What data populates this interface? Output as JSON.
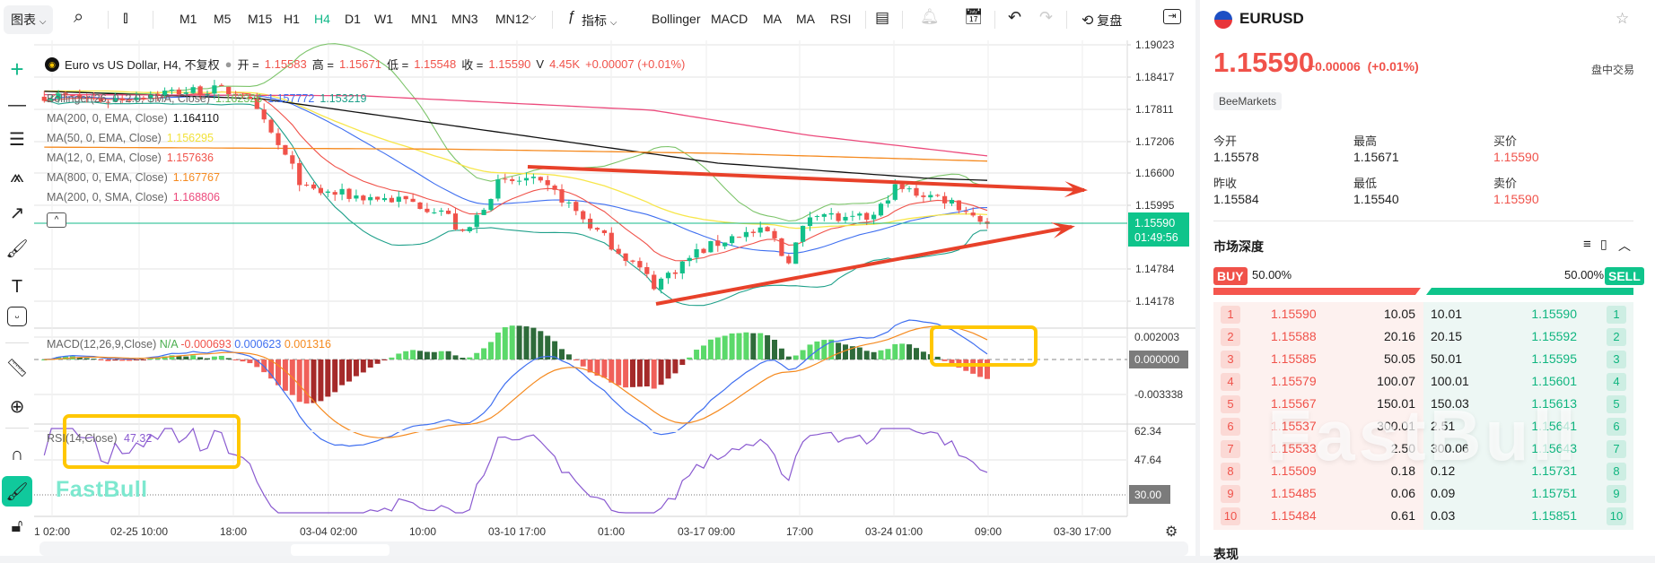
{
  "toolbar": {
    "chart_menu": "图表",
    "timeframes": [
      "M1",
      "M5",
      "M15",
      "H1",
      "H4",
      "D1",
      "W1",
      "MN1",
      "MN3",
      "MN12"
    ],
    "active_timeframe": "H4",
    "indicators_label": "指标",
    "indicator_shortcuts": [
      "Bollinger",
      "MACD",
      "MA",
      "MA",
      "RSI"
    ],
    "replay_label": "复盘"
  },
  "legend": {
    "title": "Euro vs US Dollar, H4, 不复权",
    "open_label": "开 =",
    "open": "1.15583",
    "high_label": "高 =",
    "high": "1.15671",
    "low_label": "低 =",
    "low": "1.15548",
    "close_label": "收 =",
    "close": "1.15590",
    "volume_label": "V",
    "volume": "4.45K",
    "change": "+0.00007 (+0.01%)",
    "indicators": [
      {
        "name": "Bollinger(26, 0, 2.0, SMA, Close)",
        "values": [
          "1.162326",
          "1.157772",
          "1.153219"
        ]
      },
      {
        "name": "MA(200, 0, EMA, Close)",
        "value": "1.164110",
        "color": "#111111"
      },
      {
        "name": "MA(50, 0, EMA, Close)",
        "value": "1.156295",
        "color": "#f2e23a"
      },
      {
        "name": "MA(12, 0, EMA, Close)",
        "value": "1.157636",
        "color": "#f0524a"
      },
      {
        "name": "MA(800, 0, EMA, Close)",
        "value": "1.167767",
        "color": "#f58a1f"
      },
      {
        "name": "MA(200, 0, SMA, Close)",
        "value": "1.168806",
        "color": "#ec4a7c"
      }
    ]
  },
  "price_axis": [
    "1.19023",
    "1.18417",
    "1.17811",
    "1.17206",
    "1.16600",
    "1.15995",
    "1.14784",
    "1.14178"
  ],
  "current_price": {
    "value": "1.15590",
    "countdown": "01:49:56"
  },
  "macd": {
    "label": "MACD(12,26,9,Close)",
    "values": [
      "N/A",
      "-0.000693",
      "0.000623",
      "0.001316"
    ],
    "axis": [
      "0.002003",
      "0.000000",
      "-0.003338"
    ]
  },
  "rsi": {
    "label": "RSI(14,Close)",
    "value": "47.32",
    "axis": [
      "62.34",
      "47.64",
      "30.00"
    ]
  },
  "x_axis": [
    "1 02:00",
    "02-25 10:00",
    "18:00",
    "03-04 02:00",
    "10:00",
    "03-10 17:00",
    "01:00",
    "03-17 09:00",
    "17:00",
    "03-24 01:00",
    "09:00",
    "03-30 17:00"
  ],
  "watermark": "FastBull",
  "colors": {
    "up": "#13c08a",
    "down": "#f0524a",
    "annotation_arrow": "#e8412a",
    "highlight_box": "#ffc700"
  },
  "panel": {
    "symbol": "EURUSD",
    "price": "1.15590",
    "change": "+0.00006",
    "change_pct": "(+0.01%)",
    "session": "盘中交易",
    "broker": "BeeMarkets",
    "stats": [
      {
        "label": "今开",
        "value": "1.15578"
      },
      {
        "label": "最高",
        "value": "1.15671"
      },
      {
        "label": "买价",
        "value": "1.15590"
      },
      {
        "label": "昨收",
        "value": "1.15584"
      },
      {
        "label": "最低",
        "value": "1.15540"
      },
      {
        "label": "卖价",
        "value": "1.15590"
      }
    ],
    "depth_title": "市场深度",
    "buy_label": "BUY",
    "buy_pct": "50.00%",
    "sell_label": "SELL",
    "sell_pct": "50.00%",
    "buy_fraction": 0.5,
    "orderbook": [
      {
        "rank": "1",
        "bid": "1.15590",
        "bid_qty": "10.05",
        "ask_qty": "10.01",
        "ask": "1.15590"
      },
      {
        "rank": "2",
        "bid": "1.15588",
        "bid_qty": "20.16",
        "ask_qty": "20.15",
        "ask": "1.15592"
      },
      {
        "rank": "3",
        "bid": "1.15585",
        "bid_qty": "50.05",
        "ask_qty": "50.01",
        "ask": "1.15595"
      },
      {
        "rank": "4",
        "bid": "1.15579",
        "bid_qty": "100.07",
        "ask_qty": "100.01",
        "ask": "1.15601"
      },
      {
        "rank": "5",
        "bid": "1.15567",
        "bid_qty": "150.01",
        "ask_qty": "150.03",
        "ask": "1.15613"
      },
      {
        "rank": "6",
        "bid": "1.15537",
        "bid_qty": "300.01",
        "ask_qty": "2.51",
        "ask": "1.15641"
      },
      {
        "rank": "7",
        "bid": "1.15533",
        "bid_qty": "2.50",
        "ask_qty": "300.06",
        "ask": "1.15643"
      },
      {
        "rank": "8",
        "bid": "1.15509",
        "bid_qty": "0.18",
        "ask_qty": "0.12",
        "ask": "1.15731"
      },
      {
        "rank": "9",
        "bid": "1.15485",
        "bid_qty": "0.06",
        "ask_qty": "0.09",
        "ask": "1.15751"
      },
      {
        "rank": "10",
        "bid": "1.15484",
        "bid_qty": "0.61",
        "ask_qty": "0.03",
        "ask": "1.15851"
      }
    ],
    "next_section": "表现"
  }
}
